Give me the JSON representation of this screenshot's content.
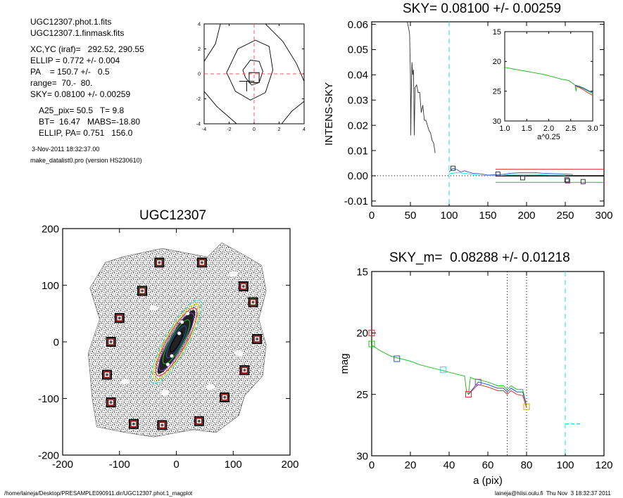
{
  "info": {
    "lines": [
      "UGC12307.phot.1.fits",
      "UGC12307.1.finmask.fits",
      "XC,YC (iraf)=   292.52, 290.55",
      "ELLIP = 0.772 +/- 0.004",
      "PA    = 150.7 +/-   0.5",
      "range=  70.-  80.",
      "SKY= 0.08100 +/- 0.00259",
      "A25_pix= 50.5   T= 9.8",
      "BT=  16.47   MABS=-18.80",
      "ELLIP, PA= 0.751   156.0"
    ],
    "date": "3-Nov-2011 18:32:37.00",
    "program": "make_datalist0.pro (version HS230610)"
  },
  "footer": {
    "path": "/home/laineja/Desktop/PRESAMPLE090911.dir/UGC12307.phot.1_magplot",
    "user": "laineja@hiisi.oulu.fi  Thu Nov  3 18:32:37 2011"
  },
  "colors": {
    "contour": "#000000",
    "center_cross": "#ff5555",
    "profile_red": "#e03030",
    "profile_green": "#22c022",
    "profile_blue": "#2255cc",
    "profile_cyan": "#22dddd",
    "mask_box": "#8b0000"
  },
  "chart_data": [
    {
      "type": "line",
      "title": "",
      "xlabel": "",
      "ylabel": "",
      "xlim": [
        -4,
        4
      ],
      "ylim": [
        -4,
        4
      ],
      "xticks": [
        "-4",
        "-2",
        "0",
        "2",
        "4"
      ],
      "yticks": [
        "-4",
        "-2",
        "0",
        "2",
        "4"
      ],
      "contours": [
        [
          [
            -0.9,
            0.3
          ],
          [
            -0.7,
            -0.3
          ],
          [
            -0.2,
            -0.9
          ],
          [
            0.4,
            -0.7
          ],
          [
            0.7,
            0.2
          ],
          [
            0.4,
            1.0
          ],
          [
            -0.3,
            1.1
          ],
          [
            -0.9,
            0.3
          ]
        ],
        [
          [
            -2.2,
            0.1
          ],
          [
            -1.5,
            -1.4
          ],
          [
            -0.3,
            -2.1
          ],
          [
            0.9,
            -1.5
          ],
          [
            1.5,
            0.3
          ],
          [
            1.2,
            2.2
          ],
          [
            0.1,
            2.7
          ],
          [
            -1.3,
            2.0
          ],
          [
            -2.2,
            0.1
          ]
        ],
        [
          [
            -4.0,
            -1.4
          ],
          [
            -3.0,
            -2.6
          ],
          [
            -1.4,
            -4.0
          ]
        ],
        [
          [
            -2.7,
            4.0
          ],
          [
            -3.1,
            2.4
          ],
          [
            -4.0,
            1.0
          ]
        ],
        [
          [
            0.9,
            4.0
          ],
          [
            2.3,
            2.6
          ],
          [
            3.4,
            0.8
          ],
          [
            4.0,
            -0.6
          ]
        ],
        [
          [
            2.2,
            -4.0
          ],
          [
            3.0,
            -3.0
          ],
          [
            4.0,
            -2.2
          ]
        ]
      ]
    },
    {
      "type": "line",
      "title": "SKY= 0.08100 +/- 0.00259",
      "xlabel": "",
      "ylabel": "INTENS-SKY",
      "xlim": [
        0,
        300
      ],
      "ylim": [
        -0.012,
        0.061
      ],
      "xticks": [
        "0",
        "50",
        "100",
        "150",
        "200",
        "250",
        "300"
      ],
      "yticks": [
        "-0.01",
        "0.00",
        "0.01",
        "0.02",
        "0.03",
        "0.04",
        "0.05",
        "0.06"
      ],
      "sky_line": 0.0,
      "vline": 100,
      "hlines": [
        {
          "name": "red",
          "y": 0.0026,
          "x": [
            160,
            300
          ]
        },
        {
          "name": "green",
          "y": -0.0026,
          "x": [
            160,
            300
          ]
        }
      ],
      "series": [
        {
          "name": "profile",
          "x": [
            46,
            48,
            49,
            50,
            50.5,
            51,
            52,
            53,
            54,
            55,
            56,
            58,
            60,
            62,
            64,
            66,
            68,
            70,
            72,
            74,
            76,
            78,
            80,
            82
          ],
          "y": [
            0.061,
            0.058,
            0.056,
            0.04,
            0.016,
            0.03,
            0.045,
            0.04,
            0.042,
            0.016,
            0.035,
            0.036,
            0.033,
            0.033,
            0.025,
            0.028,
            0.022,
            0.022,
            0.02,
            0.018,
            0.017,
            0.014,
            0.013,
            0.009
          ]
        },
        {
          "name": "outer-blue",
          "x": [
            100,
            105,
            110,
            115,
            120,
            130,
            140,
            150,
            160,
            170,
            180,
            190,
            200,
            210,
            220,
            230,
            240,
            250,
            260
          ],
          "y": [
            0.0015,
            0.003,
            0.0025,
            0.0015,
            0.002,
            0.001,
            0.0008,
            0.0003,
            0.0004,
            0.0006,
            0.001,
            0.0012,
            0.0013,
            0.0013,
            0.001,
            0.0009,
            0.0008,
            0.0007,
            0.0005
          ]
        },
        {
          "name": "outer-cyan",
          "x": [
            100,
            110,
            120,
            130,
            140,
            150,
            160,
            170,
            180,
            190,
            200,
            210,
            220,
            230,
            240,
            250
          ],
          "y": [
            0.0008,
            0.0012,
            0.001,
            0.0005,
            0.0002,
            0.0001,
            0.0,
            0.0002,
            0.0005,
            0.0006,
            0.0006,
            0.0006,
            0.0004,
            0.0003,
            0.0003,
            0.0002
          ]
        }
      ],
      "markers": [
        [
          105,
          0.003
        ],
        [
          163,
          0.0007
        ],
        [
          195,
          -0.0008
        ],
        [
          252,
          -0.0016
        ],
        [
          253,
          -0.002
        ],
        [
          273,
          -0.0023
        ]
      ]
    },
    {
      "type": "line",
      "title": "",
      "xlabel": "a^0.25",
      "ylabel": "",
      "xlim": [
        1.0,
        3.0
      ],
      "ylim": [
        15,
        30
      ],
      "xticks": [
        "1.0",
        "1.5",
        "2.0",
        "2.5",
        "3.0"
      ],
      "yticks": [
        "15",
        "20",
        "25",
        "30"
      ],
      "series": [
        {
          "name": "green",
          "x": [
            1.0,
            1.3,
            1.6,
            1.9,
            2.1,
            2.3,
            2.45,
            2.55,
            2.6,
            2.62,
            2.64,
            2.7,
            2.8,
            2.9,
            3.0
          ],
          "y": [
            21.0,
            21.4,
            21.8,
            22.2,
            22.6,
            23.0,
            23.2,
            23.7,
            24.0,
            25.0,
            24.1,
            24.3,
            24.6,
            25.0,
            25.4
          ]
        },
        {
          "name": "red",
          "x": [
            2.6,
            2.7,
            2.8,
            2.9,
            3.0
          ],
          "y": [
            24.1,
            24.4,
            24.8,
            25.3,
            25.7
          ]
        },
        {
          "name": "blue",
          "x": [
            2.6,
            2.7,
            2.8,
            2.9,
            3.0
          ],
          "y": [
            24.0,
            24.2,
            24.5,
            24.9,
            25.2
          ]
        }
      ]
    },
    {
      "type": "scatter",
      "title": "UGC12307",
      "xlabel": "",
      "ylabel": "",
      "xlim": [
        -200,
        200
      ],
      "ylim": [
        -200,
        200
      ],
      "xticks": [
        "-200",
        "-100",
        "0",
        "100",
        "200"
      ],
      "yticks": [
        "-200",
        "-100",
        "0",
        "100",
        "200"
      ],
      "galaxy": {
        "x": 0,
        "y": 0,
        "semi_major": 80,
        "semi_minor": 18,
        "pa_deg": 150.7
      },
      "mask_boxes": [
        [
          -30,
          140
        ],
        [
          45,
          140
        ],
        [
          -60,
          90
        ],
        [
          118,
          98
        ],
        [
          135,
          70
        ],
        [
          -100,
          42
        ],
        [
          -115,
          0
        ],
        [
          142,
          5
        ],
        [
          -122,
          -58
        ],
        [
          120,
          -50
        ],
        [
          -115,
          -107
        ],
        [
          85,
          -98
        ],
        [
          -75,
          -145
        ],
        [
          -25,
          -147
        ],
        [
          40,
          -140
        ]
      ]
    },
    {
      "type": "line",
      "title": "SKY_m=  0.08288 +/- 0.01218",
      "xlabel": "a (pix)",
      "ylabel": "mag",
      "xlim": [
        0,
        120
      ],
      "ylim": [
        15,
        30
      ],
      "xticks": [
        "0",
        "20",
        "40",
        "60",
        "80",
        "100",
        "120"
      ],
      "yticks": [
        "15",
        "20",
        "25",
        "30"
      ],
      "vlines_dotted": [
        70,
        80
      ],
      "vline_dashed": 100,
      "hline_dashed": {
        "y": 27.4,
        "x": [
          100,
          108
        ]
      },
      "series": [
        {
          "name": "green",
          "x": [
            0,
            5,
            10,
            15,
            20,
            25,
            30,
            35,
            40,
            45,
            48,
            49,
            50,
            51,
            52,
            55,
            60,
            65,
            68,
            70,
            72,
            75,
            78,
            80
          ],
          "y": [
            21.0,
            21.5,
            21.9,
            22.1,
            22.3,
            22.6,
            22.8,
            23.0,
            23.2,
            23.4,
            23.5,
            24.8,
            25.0,
            23.6,
            23.7,
            23.8,
            24.0,
            24.3,
            24.3,
            24.6,
            24.3,
            24.6,
            24.6,
            25.9
          ]
        },
        {
          "name": "red",
          "x": [
            50,
            55,
            60,
            65,
            68,
            70,
            72,
            75,
            78,
            80
          ],
          "y": [
            25.0,
            24.2,
            24.4,
            24.7,
            24.7,
            25.0,
            24.7,
            25.0,
            25.1,
            26.1
          ]
        },
        {
          "name": "blue",
          "x": [
            50,
            55,
            60,
            65,
            68,
            70,
            72,
            75,
            78,
            80
          ],
          "y": [
            25.0,
            24.0,
            24.2,
            24.5,
            24.5,
            24.8,
            24.5,
            24.8,
            24.8,
            25.9
          ]
        }
      ],
      "markers": [
        {
          "x": 0,
          "y": 20.0,
          "color": "red"
        },
        {
          "x": 0,
          "y": 20.9,
          "color": "green"
        },
        {
          "x": 13,
          "y": 22.1,
          "color": "blue"
        },
        {
          "x": 37,
          "y": 23.0,
          "color": "cyan"
        },
        {
          "x": 50,
          "y": 25.0,
          "color": "red"
        },
        {
          "x": 55,
          "y": 24.0,
          "color": "purple"
        },
        {
          "x": 80,
          "y": 26.0,
          "color": "orange"
        }
      ]
    }
  ]
}
